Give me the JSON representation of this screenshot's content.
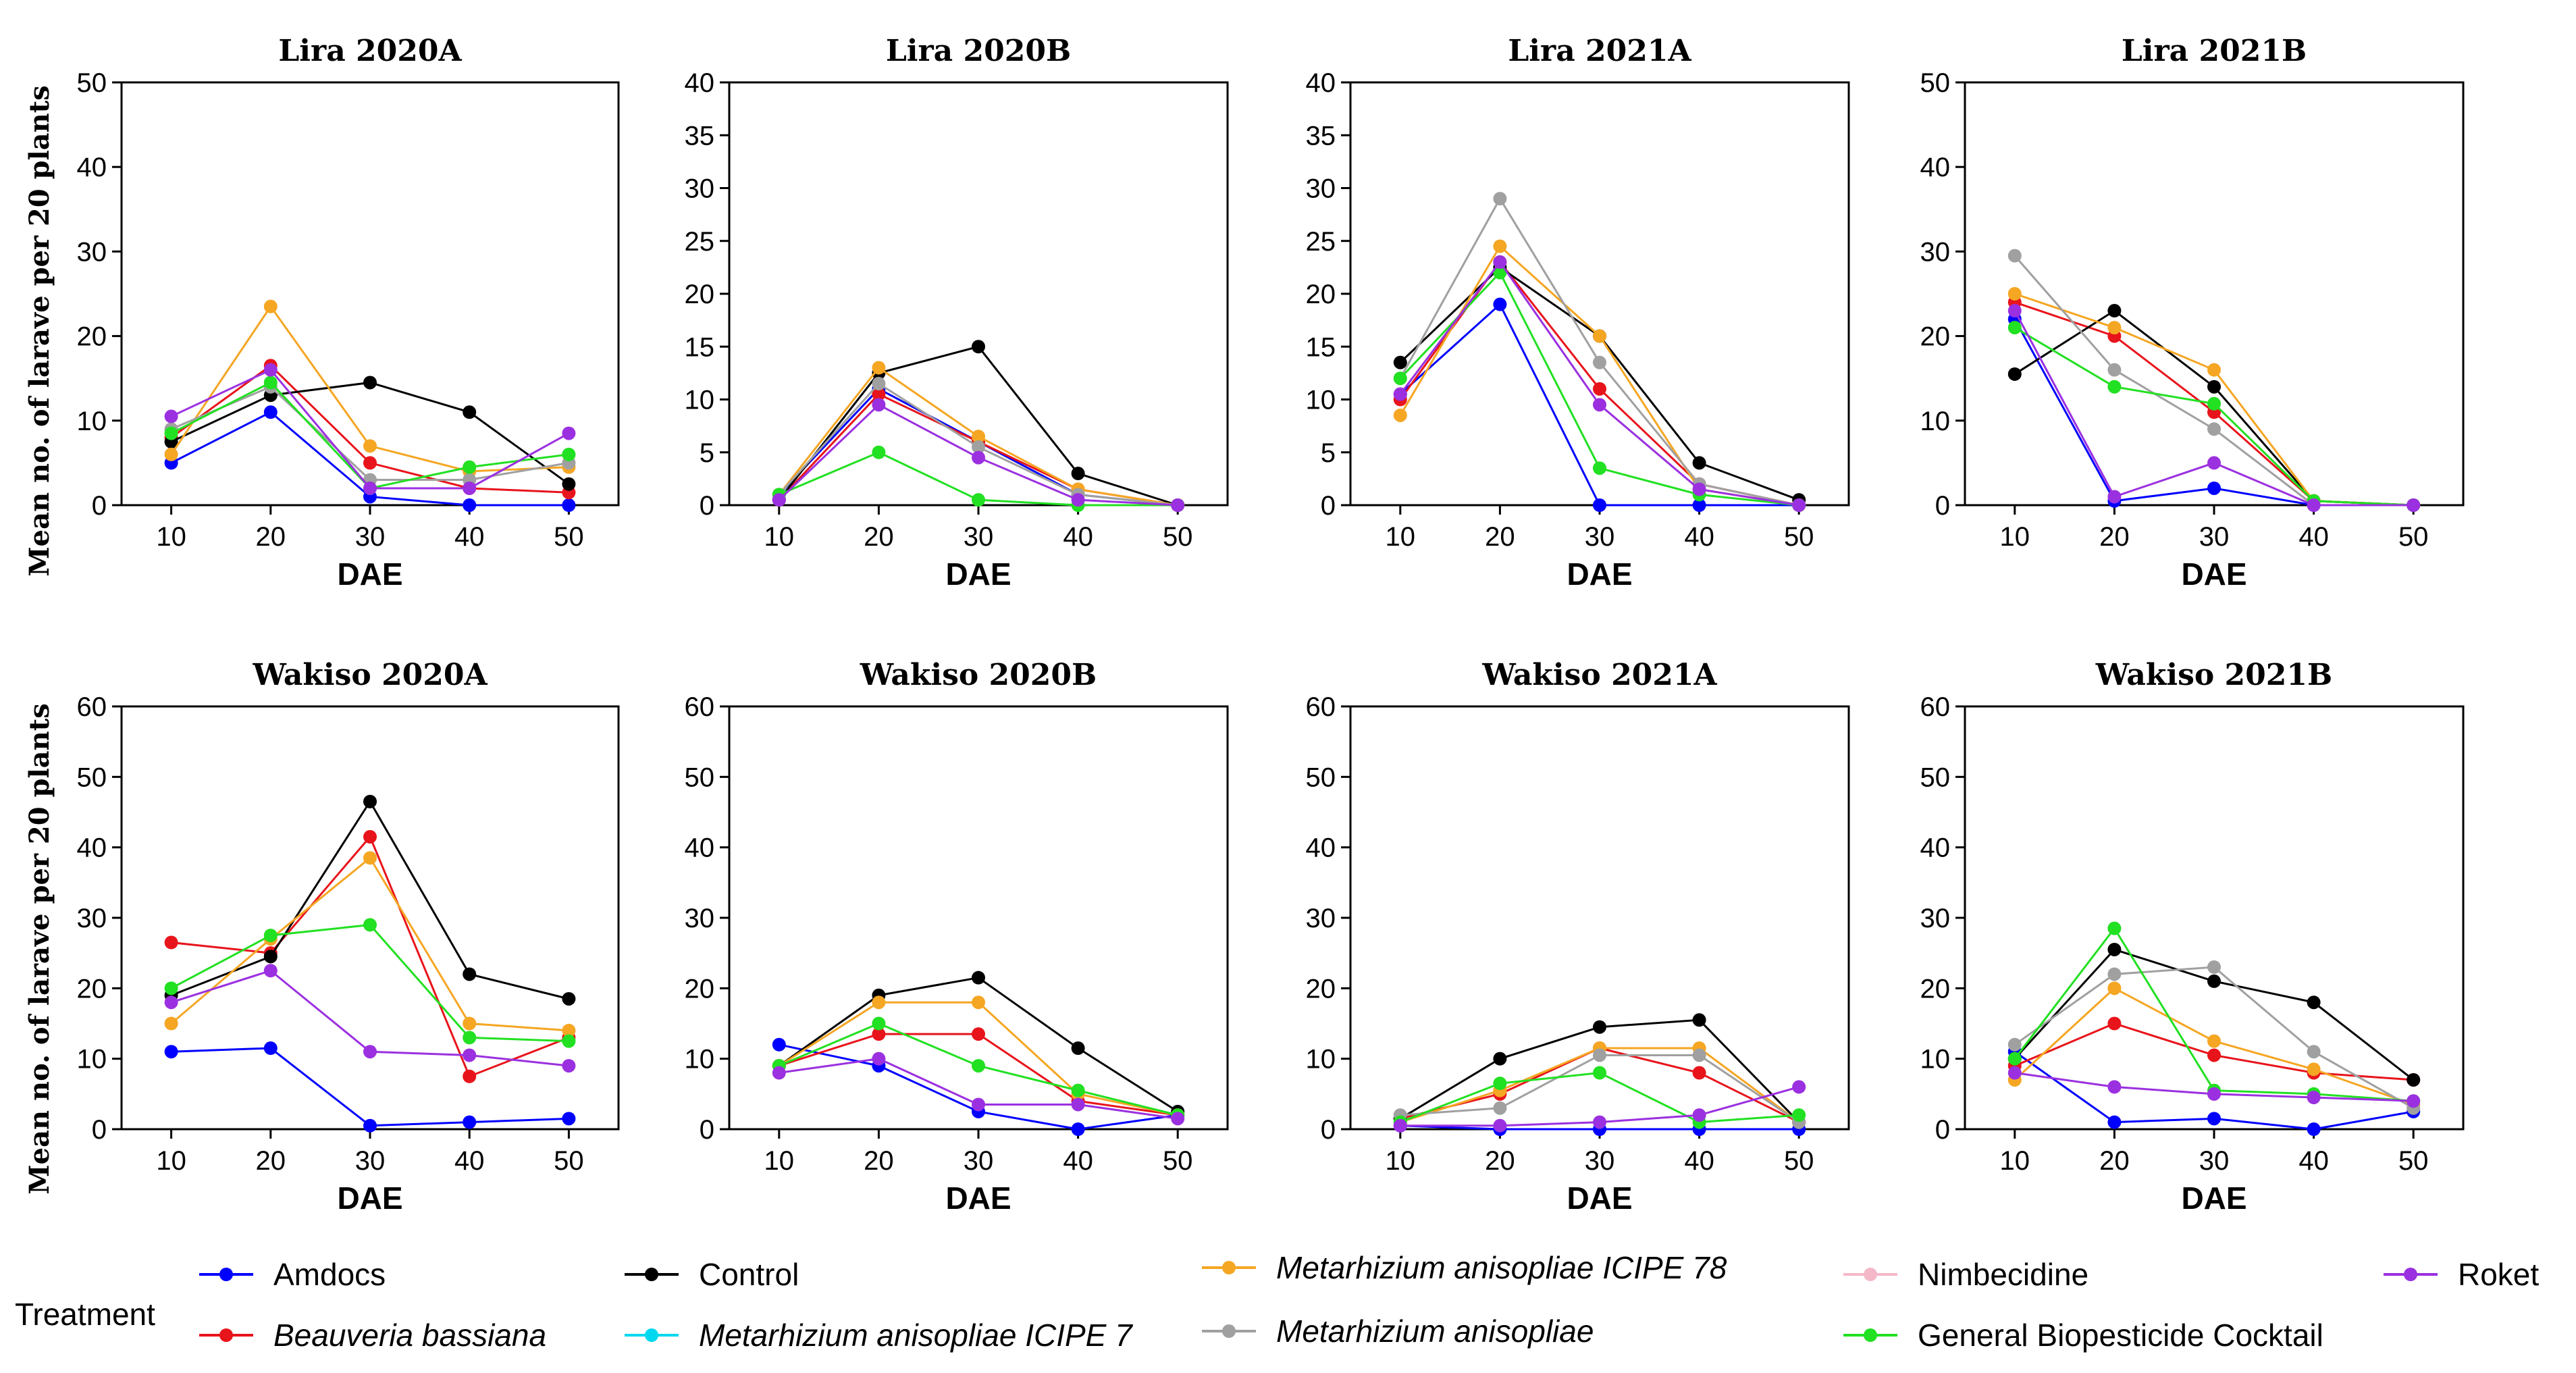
{
  "figure": {
    "ylabel_top": "Mean no. of larave per 20 plants",
    "ylabel_bottom": "Mean no. of larave per 20 plants"
  },
  "legend": {
    "title": "Treatment",
    "items": [
      {
        "name": "Amdocs",
        "italic": false,
        "color": "#0000ff"
      },
      {
        "name": "Beauveria bassiana",
        "italic": true,
        "color": "#e8141b"
      },
      {
        "name": "Control",
        "italic": false,
        "color": "#000000"
      },
      {
        "name": "Metarhizium anisopliae ICIPE 7",
        "italic": true,
        "color": "#00d8f0"
      },
      {
        "name": "Metarhizium anisopliae ICIPE 78",
        "italic": true,
        "color": "#f5a623"
      },
      {
        "name": "Metarhizium anisopliae",
        "italic": true,
        "color": "#a0a0a0"
      },
      {
        "name": "Nimbecidine",
        "italic": false,
        "color": "#f5b8c8"
      },
      {
        "name": "General Biopesticide Cocktail",
        "italic": false,
        "color": "#22e022"
      },
      {
        "name": "Roket",
        "italic": false,
        "color": "#9b30e0"
      }
    ]
  },
  "chart_data": [
    {
      "type": "line",
      "title": "Lira 2020A",
      "xlabel": "DAE",
      "x": [
        10,
        20,
        30,
        40,
        50
      ],
      "xlim": [
        5,
        55
      ],
      "ylim": [
        0,
        50
      ],
      "yticks": [
        0,
        10,
        20,
        30,
        40,
        50
      ],
      "series": [
        {
          "name": "Amdocs",
          "values": [
            5,
            11,
            1,
            0,
            0
          ]
        },
        {
          "name": "Beauveria bassiana",
          "values": [
            8,
            16.5,
            5,
            2,
            1.5
          ]
        },
        {
          "name": "Control",
          "values": [
            7.5,
            13,
            14.5,
            11,
            2.5
          ]
        },
        {
          "name": "Metarhizium anisopliae ICIPE 78",
          "values": [
            6,
            23.5,
            7,
            4,
            4.5
          ]
        },
        {
          "name": "Metarhizium anisopliae",
          "values": [
            9,
            14,
            3,
            3,
            5
          ]
        },
        {
          "name": "General Biopesticide Cocktail",
          "values": [
            8.5,
            14.5,
            2,
            4.5,
            6
          ]
        },
        {
          "name": "Roket",
          "values": [
            10.5,
            16,
            2,
            2,
            8.5
          ]
        }
      ]
    },
    {
      "type": "line",
      "title": "Lira 2020B",
      "xlabel": "DAE",
      "x": [
        10,
        20,
        30,
        40,
        50
      ],
      "xlim": [
        5,
        55
      ],
      "ylim": [
        0,
        40
      ],
      "yticks": [
        0,
        5,
        10,
        15,
        20,
        25,
        30,
        35,
        40
      ],
      "series": [
        {
          "name": "Amdocs",
          "values": [
            1,
            11,
            6,
            1,
            0
          ]
        },
        {
          "name": "Beauveria bassiana",
          "values": [
            0.5,
            10.5,
            6,
            1.5,
            0
          ]
        },
        {
          "name": "Control",
          "values": [
            0.5,
            12.5,
            15,
            3,
            0
          ]
        },
        {
          "name": "Metarhizium anisopliae ICIPE 78",
          "values": [
            1,
            13,
            6.5,
            1.5,
            0
          ]
        },
        {
          "name": "Metarhizium anisopliae",
          "values": [
            1,
            11.5,
            5.5,
            1,
            0
          ]
        },
        {
          "name": "General Biopesticide Cocktail",
          "values": [
            1,
            5,
            0.5,
            0,
            0
          ]
        },
        {
          "name": "Roket",
          "values": [
            0.5,
            9.5,
            4.5,
            0.5,
            0
          ]
        }
      ]
    },
    {
      "type": "line",
      "title": "Lira 2021A",
      "xlabel": "DAE",
      "x": [
        10,
        20,
        30,
        40,
        50
      ],
      "xlim": [
        5,
        55
      ],
      "ylim": [
        0,
        40
      ],
      "yticks": [
        0,
        5,
        10,
        15,
        20,
        25,
        30,
        35,
        40
      ],
      "series": [
        {
          "name": "Amdocs",
          "values": [
            10.5,
            19,
            0,
            0,
            0
          ]
        },
        {
          "name": "Beauveria bassiana",
          "values": [
            10,
            23,
            11,
            2,
            0
          ]
        },
        {
          "name": "Control",
          "values": [
            13.5,
            22.5,
            16,
            4,
            0.5
          ]
        },
        {
          "name": "Metarhizium anisopliae ICIPE 78",
          "values": [
            8.5,
            24.5,
            16,
            1.5,
            0
          ]
        },
        {
          "name": "Metarhizium anisopliae",
          "values": [
            12,
            29,
            13.5,
            2,
            0
          ]
        },
        {
          "name": "General Biopesticide Cocktail",
          "values": [
            12,
            22,
            3.5,
            1,
            0
          ]
        },
        {
          "name": "Roket",
          "values": [
            10.5,
            23,
            9.5,
            1.5,
            0
          ]
        }
      ]
    },
    {
      "type": "line",
      "title": "Lira 2021B",
      "xlabel": "DAE",
      "x": [
        10,
        20,
        30,
        40,
        50
      ],
      "xlim": [
        5,
        55
      ],
      "ylim": [
        0,
        50
      ],
      "yticks": [
        0,
        10,
        20,
        30,
        40,
        50
      ],
      "series": [
        {
          "name": "Amdocs",
          "values": [
            22,
            0.5,
            2,
            0,
            0
          ]
        },
        {
          "name": "Beauveria bassiana",
          "values": [
            24,
            20,
            11,
            0.5,
            0
          ]
        },
        {
          "name": "Control",
          "values": [
            15.5,
            23,
            14,
            0.5,
            0
          ]
        },
        {
          "name": "Metarhizium anisopliae ICIPE 78",
          "values": [
            25,
            21,
            16,
            0.5,
            0
          ]
        },
        {
          "name": "Metarhizium anisopliae",
          "values": [
            29.5,
            16,
            9,
            0,
            0
          ]
        },
        {
          "name": "General Biopesticide Cocktail",
          "values": [
            21,
            14,
            12,
            0.5,
            0
          ]
        },
        {
          "name": "Roket",
          "values": [
            23,
            1,
            5,
            0,
            0
          ]
        }
      ]
    },
    {
      "type": "line",
      "title": "Wakiso 2020A",
      "xlabel": "DAE",
      "x": [
        10,
        20,
        30,
        40,
        50
      ],
      "xlim": [
        5,
        55
      ],
      "ylim": [
        0,
        60
      ],
      "yticks": [
        0,
        10,
        20,
        30,
        40,
        50,
        60
      ],
      "series": [
        {
          "name": "Amdocs",
          "values": [
            11,
            11.5,
            0.5,
            1,
            1.5
          ]
        },
        {
          "name": "Beauveria bassiana",
          "values": [
            26.5,
            25,
            41.5,
            7.5,
            13
          ]
        },
        {
          "name": "Control",
          "values": [
            19,
            24.5,
            46.5,
            22,
            18.5
          ]
        },
        {
          "name": "Metarhizium anisopliae ICIPE 78",
          "values": [
            15,
            27,
            38.5,
            15,
            14
          ]
        },
        {
          "name": "General Biopesticide Cocktail",
          "values": [
            20,
            27.5,
            29,
            13,
            12.5
          ]
        },
        {
          "name": "Roket",
          "values": [
            18,
            22.5,
            11,
            10.5,
            9
          ]
        }
      ]
    },
    {
      "type": "line",
      "title": "Wakiso 2020B",
      "xlabel": "DAE",
      "x": [
        10,
        20,
        30,
        40,
        50
      ],
      "xlim": [
        5,
        55
      ],
      "ylim": [
        0,
        60
      ],
      "yticks": [
        0,
        10,
        20,
        30,
        40,
        50,
        60
      ],
      "series": [
        {
          "name": "Amdocs",
          "values": [
            12,
            9,
            2.5,
            0,
            2
          ]
        },
        {
          "name": "Beauveria bassiana",
          "values": [
            9,
            13.5,
            13.5,
            4,
            2
          ]
        },
        {
          "name": "Control",
          "values": [
            9,
            19,
            21.5,
            11.5,
            2.5
          ]
        },
        {
          "name": "Metarhizium anisopliae ICIPE 78",
          "values": [
            9,
            18,
            18,
            5,
            2
          ]
        },
        {
          "name": "General Biopesticide Cocktail",
          "values": [
            9,
            15,
            9,
            5.5,
            2
          ]
        },
        {
          "name": "Roket",
          "values": [
            8,
            10,
            3.5,
            3.5,
            1.5
          ]
        }
      ]
    },
    {
      "type": "line",
      "title": "Wakiso 2021A",
      "xlabel": "DAE",
      "x": [
        10,
        20,
        30,
        40,
        50
      ],
      "xlim": [
        5,
        55
      ],
      "ylim": [
        0,
        60
      ],
      "yticks": [
        0,
        10,
        20,
        30,
        40,
        50,
        60
      ],
      "series": [
        {
          "name": "Amdocs",
          "values": [
            0.5,
            0,
            0,
            0,
            0
          ]
        },
        {
          "name": "Beauveria bassiana",
          "values": [
            1.5,
            5,
            11.5,
            8,
            1
          ]
        },
        {
          "name": "Control",
          "values": [
            1.5,
            10,
            14.5,
            15.5,
            1
          ]
        },
        {
          "name": "Metarhizium anisopliae ICIPE 78",
          "values": [
            1,
            5.5,
            11.5,
            11.5,
            1
          ]
        },
        {
          "name": "Metarhizium anisopliae",
          "values": [
            2,
            3,
            10.5,
            10.5,
            1
          ]
        },
        {
          "name": "General Biopesticide Cocktail",
          "values": [
            1,
            6.5,
            8,
            1,
            2
          ]
        },
        {
          "name": "Roket",
          "values": [
            0.5,
            0.5,
            1,
            2,
            6
          ]
        }
      ]
    },
    {
      "type": "line",
      "title": "Wakiso 2021B",
      "xlabel": "DAE",
      "x": [
        10,
        20,
        30,
        40,
        50
      ],
      "xlim": [
        5,
        55
      ],
      "ylim": [
        0,
        60
      ],
      "yticks": [
        0,
        10,
        20,
        30,
        40,
        50,
        60
      ],
      "series": [
        {
          "name": "Amdocs",
          "values": [
            11,
            1,
            1.5,
            0,
            2.5
          ]
        },
        {
          "name": "Beauveria bassiana",
          "values": [
            9,
            15,
            10.5,
            8,
            7
          ]
        },
        {
          "name": "Control",
          "values": [
            10,
            25.5,
            21,
            18,
            7
          ]
        },
        {
          "name": "Metarhizium anisopliae ICIPE 78",
          "values": [
            7,
            20,
            12.5,
            8.5,
            3.5
          ]
        },
        {
          "name": "Metarhizium anisopliae",
          "values": [
            12,
            22,
            23,
            11,
            3
          ]
        },
        {
          "name": "General Biopesticide Cocktail",
          "values": [
            10,
            28.5,
            5.5,
            5,
            4
          ]
        },
        {
          "name": "Roket",
          "values": [
            8,
            6,
            5,
            4.5,
            4
          ]
        }
      ]
    }
  ]
}
